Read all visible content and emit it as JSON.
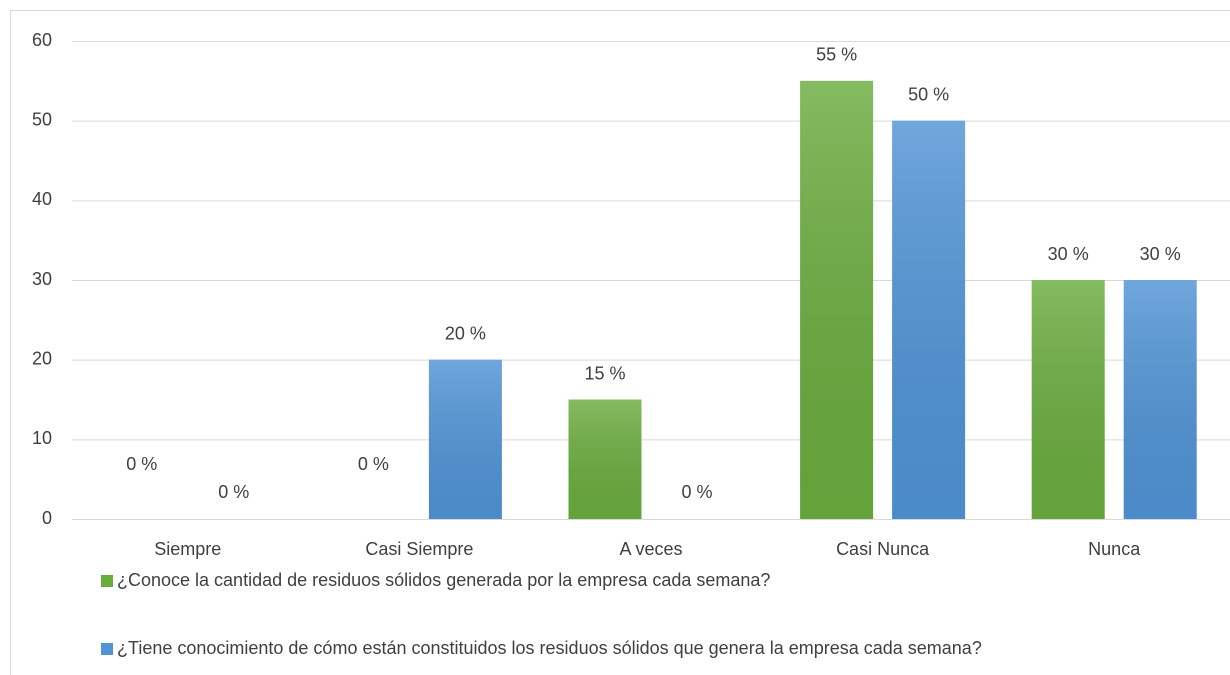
{
  "chart_data": {
    "type": "bar",
    "categories": [
      "Siempre",
      "Casi Siempre",
      "A veces",
      "Casi Nunca",
      "Nunca"
    ],
    "series": [
      {
        "name": "¿Conoce la cantidad de residuos sólidos generada por la empresa cada semana?",
        "color": "#6aac3e",
        "values": [
          0,
          0,
          15,
          55,
          30
        ],
        "value_labels": [
          "0 %",
          "0 %",
          "15 %",
          "55 %",
          "30 %"
        ]
      },
      {
        "name": "¿Tiene conocimiento de cómo están constituidos los residuos sólidos que genera la empresa cada semana?",
        "color": "#5094d6",
        "values": [
          0,
          20,
          0,
          50,
          30
        ],
        "value_labels": [
          "0 %",
          "20 %",
          "0 %",
          "50 %",
          "30 %"
        ]
      }
    ],
    "ylim": [
      0,
      60
    ],
    "yticks": [
      0,
      10,
      20,
      30,
      40,
      50,
      60
    ],
    "grid": true,
    "legend": "bottom"
  }
}
